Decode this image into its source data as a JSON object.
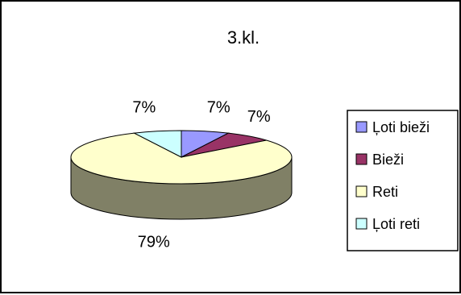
{
  "chart_data": {
    "type": "pie",
    "title": "3.kl.",
    "categories": [
      "Ļoti bieži",
      "Bieži",
      "Reti",
      "Ļoti reti"
    ],
    "values": [
      7,
      7,
      79,
      7
    ],
    "data_labels": [
      "7%",
      "7%",
      "79%",
      "7%"
    ],
    "colors": [
      "#9999FF",
      "#993366",
      "#FFFFCC",
      "#CCFFFF"
    ],
    "side_colors": [
      "#4D4D80",
      "#4D1A33",
      "#808066",
      "#668080"
    ],
    "legend_position": "right",
    "style": "3d"
  }
}
